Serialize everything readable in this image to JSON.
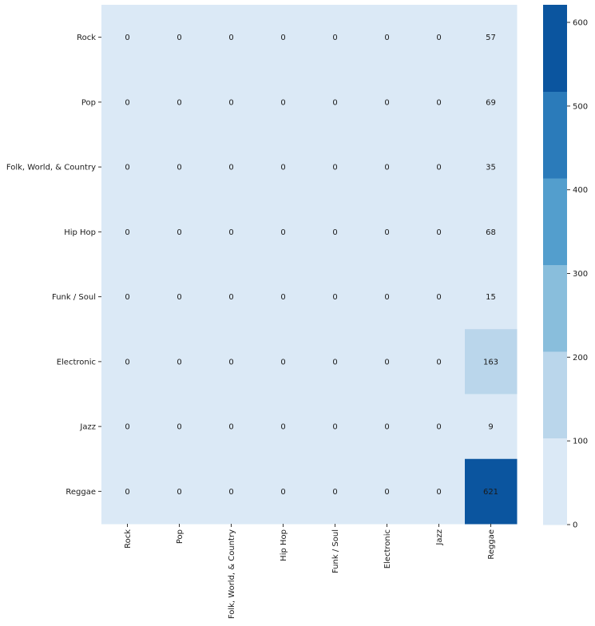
{
  "chart_data": {
    "type": "heatmap",
    "rows": [
      "Rock",
      "Pop",
      "Folk, World, & Country",
      "Hip Hop",
      "Funk / Soul",
      "Electronic",
      "Jazz",
      "Reggae"
    ],
    "columns": [
      "Rock",
      "Pop",
      "Folk, World, & Country",
      "Hip Hop",
      "Funk / Soul",
      "Electronic",
      "Jazz",
      "Reggae"
    ],
    "values": [
      [
        0,
        0,
        0,
        0,
        0,
        0,
        0,
        57
      ],
      [
        0,
        0,
        0,
        0,
        0,
        0,
        0,
        69
      ],
      [
        0,
        0,
        0,
        0,
        0,
        0,
        0,
        35
      ],
      [
        0,
        0,
        0,
        0,
        0,
        0,
        0,
        68
      ],
      [
        0,
        0,
        0,
        0,
        0,
        0,
        0,
        15
      ],
      [
        0,
        0,
        0,
        0,
        0,
        0,
        0,
        163
      ],
      [
        0,
        0,
        0,
        0,
        0,
        0,
        0,
        9
      ],
      [
        0,
        0,
        0,
        0,
        0,
        0,
        0,
        621
      ]
    ],
    "colorbar": {
      "range": [
        0,
        621
      ],
      "ticks": [
        0,
        100,
        200,
        300,
        400,
        500,
        600
      ],
      "bin_edges": [
        0,
        103.5,
        207,
        310.5,
        414,
        517.5,
        621
      ],
      "colors": [
        "#dbe9f6",
        "#bad6eb",
        "#89bedc",
        "#539ecd",
        "#2b7bba",
        "#0b559f"
      ]
    },
    "title": "",
    "xlabel": "",
    "ylabel": "",
    "annotations": true
  }
}
